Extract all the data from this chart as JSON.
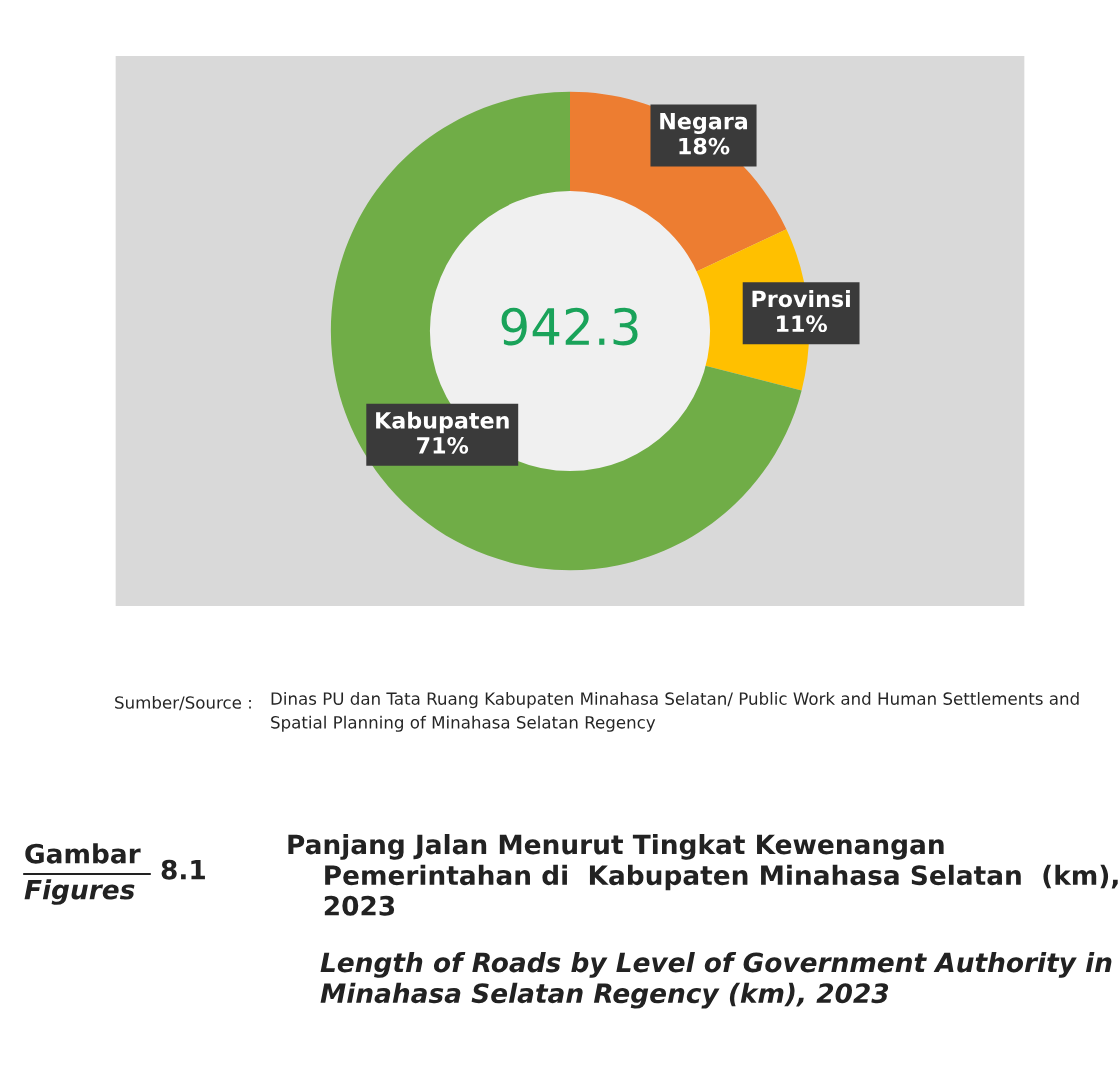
{
  "chart_data": {
    "type": "donut",
    "title": "Panjang Jalan Menurut Tingkat Kewenangan\n    Pemerintahan di  Kabupaten Minahasa Selatan  (km),\n    2023",
    "subtitle": "Length of Roads by Level of Government Authority in\nMinahasa Selatan Regency (km), 2023",
    "categories": [
      "Negara",
      "Provinsi",
      "Kabupaten"
    ],
    "values": [
      18,
      11,
      71
    ],
    "colors": [
      "#ed7d31",
      "#ffc000",
      "#70ad47"
    ],
    "value_labels": [
      "18%",
      "11%",
      "71%"
    ],
    "annotations": [
      "942.3",
      "Sumber/Source :",
      "Dinas PU dan Tata Ruang Kabupaten Minahasa Selatan/ Public Work and Human Settlements and\nSpatial Planning of Minahasa Selatan Regency",
      "Gambar",
      "Figures",
      "8.1"
    ],
    "legend": false
  }
}
